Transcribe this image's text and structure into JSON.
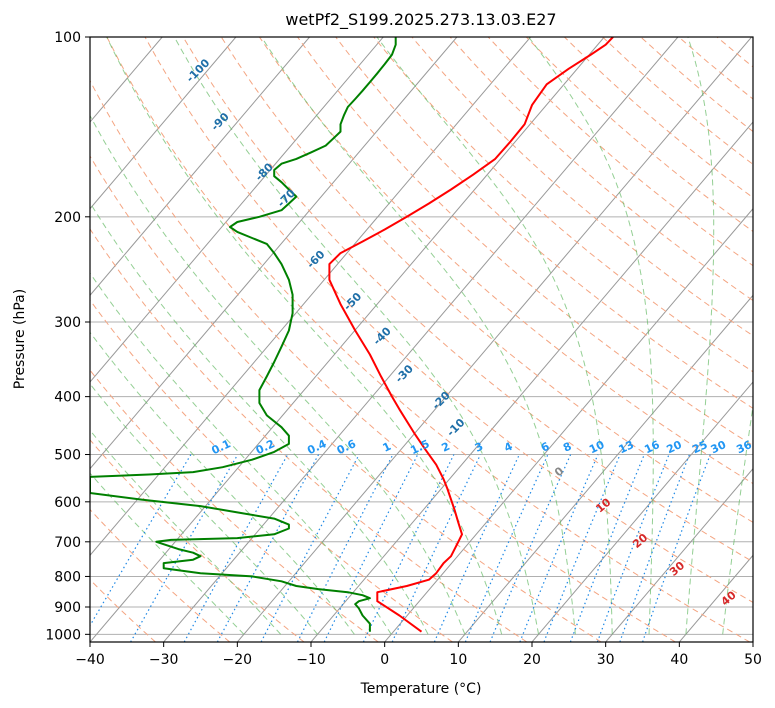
{
  "chart_data": {
    "type": "line",
    "title": "wetPf2_S199.2025.273.13.03.E27",
    "xlabel": "Temperature (°C)",
    "ylabel": "Pressure (hPa)",
    "xlim": [
      -40,
      50
    ],
    "ylim": [
      1030,
      100
    ],
    "y_scale": "log",
    "grid": true,
    "x_ticks": [
      -40,
      -30,
      -20,
      -10,
      0,
      10,
      20,
      30,
      40,
      50
    ],
    "y_ticks": [
      100,
      200,
      300,
      400,
      500,
      600,
      700,
      800,
      900,
      1000
    ],
    "x_tick_labels": [
      "−40",
      "−30",
      "−20",
      "−10",
      "0",
      "10",
      "20",
      "30",
      "40",
      "50"
    ],
    "y_tick_labels": [
      "100",
      "200",
      "300",
      "400",
      "500",
      "600",
      "700",
      "800",
      "900",
      "1000"
    ],
    "series": [
      {
        "color": "#ff0000",
        "values_note": "",
        "points": [
          [
            5,
            990
          ],
          [
            2,
            930
          ],
          [
            -1,
            880
          ],
          [
            -1,
            850
          ],
          [
            3,
            830
          ],
          [
            6,
            810
          ],
          [
            7,
            790
          ],
          [
            8,
            760
          ],
          [
            9,
            740
          ],
          [
            10,
            700
          ],
          [
            10.5,
            680
          ],
          [
            10,
            650
          ],
          [
            9.5,
            620
          ],
          [
            8.5,
            570
          ],
          [
            8,
            550
          ],
          [
            7,
            520
          ],
          [
            5.5,
            490
          ],
          [
            4,
            460
          ],
          [
            2,
            420
          ],
          [
            1,
            400
          ],
          [
            -0.5,
            370
          ],
          [
            -2,
            340
          ],
          [
            -4,
            310
          ],
          [
            -6,
            280
          ],
          [
            -7.5,
            255
          ],
          [
            -7.5,
            240
          ],
          [
            -6,
            230
          ],
          [
            -3,
            220
          ],
          [
            0,
            210
          ],
          [
            3,
            200
          ],
          [
            6,
            190
          ],
          [
            9,
            180
          ],
          [
            12,
            170
          ],
          [
            15,
            160
          ],
          [
            17,
            150
          ],
          [
            19,
            140
          ],
          [
            20,
            130
          ],
          [
            22,
            120
          ],
          [
            25,
            113
          ],
          [
            28,
            107
          ],
          [
            30,
            103
          ],
          [
            31,
            100
          ]
        ]
      },
      {
        "color": "#008000",
        "values_note": "",
        "points": [
          [
            -2,
            990
          ],
          [
            -2,
            960
          ],
          [
            -3,
            930
          ],
          [
            -3.5,
            905
          ],
          [
            -4,
            890
          ],
          [
            -3.5,
            880
          ],
          [
            -2,
            870
          ],
          [
            -3,
            860
          ],
          [
            -5,
            850
          ],
          [
            -9,
            840
          ],
          [
            -12,
            830
          ],
          [
            -14,
            815
          ],
          [
            -18,
            800
          ],
          [
            -25,
            790
          ],
          [
            -30,
            775
          ],
          [
            -30,
            760
          ],
          [
            -26,
            750
          ],
          [
            -25,
            740
          ],
          [
            -26,
            730
          ],
          [
            -28,
            720
          ],
          [
            -31,
            700
          ],
          [
            -29,
            695
          ],
          [
            -20,
            690
          ],
          [
            -15,
            680
          ],
          [
            -13,
            665
          ],
          [
            -13,
            655
          ],
          [
            -15,
            640
          ],
          [
            -20,
            625
          ],
          [
            -25,
            610
          ],
          [
            -33,
            595
          ],
          [
            -40,
            580
          ],
          [
            -40,
            545
          ],
          [
            -32,
            540
          ],
          [
            -26,
            535
          ],
          [
            -22,
            525
          ],
          [
            -18,
            510
          ],
          [
            -15,
            495
          ],
          [
            -13,
            480
          ],
          [
            -13,
            465
          ],
          [
            -14,
            450
          ],
          [
            -16,
            430
          ],
          [
            -17,
            410
          ],
          [
            -17,
            390
          ],
          [
            -16,
            370
          ],
          [
            -15,
            350
          ],
          [
            -14,
            330
          ],
          [
            -13,
            310
          ],
          [
            -12.5,
            290
          ],
          [
            -12.5,
            270
          ],
          [
            -13,
            255
          ],
          [
            -14,
            240
          ],
          [
            -15,
            230
          ],
          [
            -16,
            222
          ],
          [
            -18,
            217
          ],
          [
            -20,
            212
          ],
          [
            -21,
            208
          ],
          [
            -20,
            204
          ],
          [
            -17,
            200
          ],
          [
            -14,
            195
          ],
          [
            -13,
            190
          ],
          [
            -12,
            185
          ],
          [
            -13,
            180
          ],
          [
            -14,
            175
          ],
          [
            -15,
            171
          ],
          [
            -15,
            167
          ],
          [
            -14,
            163
          ],
          [
            -12,
            160
          ],
          [
            -10,
            156
          ],
          [
            -8,
            152
          ],
          [
            -7,
            148
          ],
          [
            -6,
            144
          ],
          [
            -6,
            140
          ],
          [
            -5.5,
            135
          ],
          [
            -5,
            131
          ],
          [
            -4,
            127
          ],
          [
            -3,
            123
          ],
          [
            -2,
            119
          ],
          [
            -1,
            115
          ],
          [
            0,
            111
          ],
          [
            1,
            107
          ],
          [
            1.5,
            103
          ],
          [
            1.5,
            100
          ]
        ]
      }
    ],
    "dry_adiabat_labels": [
      "-100",
      "-90",
      "-80",
      "-70",
      "-60",
      "-50",
      "-40",
      "-30",
      "-20",
      "-10"
    ],
    "mixing_ratio_labels": [
      "0.1",
      "0.2",
      "0.4",
      "0.6",
      "1",
      "1.5",
      "2",
      "3",
      "4",
      "6",
      "8",
      "10",
      "13",
      "16",
      "20",
      "25",
      "30",
      "36"
    ],
    "moist_adiabat_labels": [
      "0",
      "10",
      "20",
      "30",
      "40"
    ],
    "colors": {
      "isotherm": "#999999",
      "dry_adiabat": "#f4a582",
      "moist_adiabat": "#66bb66",
      "mixing_ratio": "#1e88e5",
      "dry_label": "#1f6fa8",
      "mixing_label": "#2196f3",
      "moist_gray_label": "#888888",
      "moist_red_label": "#d62728",
      "frame": "#000000"
    }
  }
}
